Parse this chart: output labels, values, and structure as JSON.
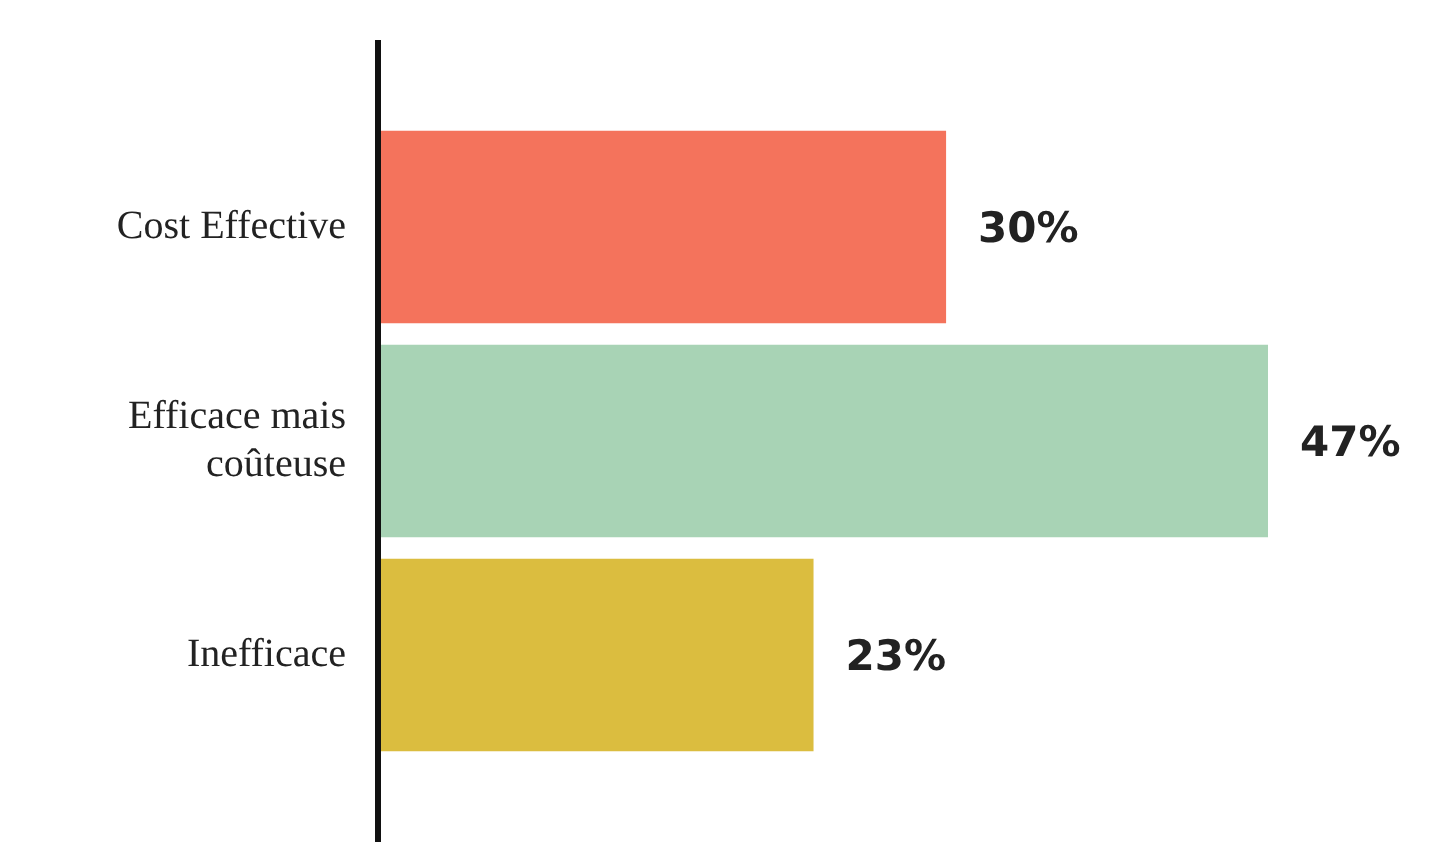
{
  "chart_data": {
    "type": "bar",
    "orientation": "horizontal",
    "categories": [
      "Cost Effective",
      "Efficace mais coûteuse",
      "Inefficace"
    ],
    "values": [
      30,
      47,
      23
    ],
    "colors": [
      "#f4735c",
      "#a8d3b5",
      "#dbbd3f"
    ],
    "value_labels": [
      "30%",
      "47%",
      "23%"
    ],
    "legend": false,
    "tick_labels": "y"
  }
}
